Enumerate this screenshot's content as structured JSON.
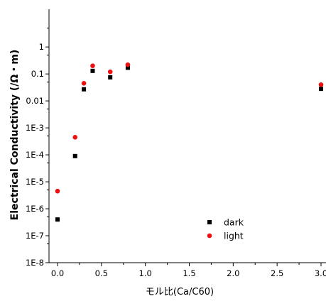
{
  "chart_data": {
    "type": "scatter",
    "title": "",
    "xlabel": "モル比(Ca/C60)",
    "ylabel": "Electrical Conductivity (/Ω・m)",
    "xlim": [
      -0.05,
      3.05
    ],
    "ylim_log10": [
      -8,
      1.4
    ],
    "y_scale": "log",
    "grid": false,
    "legend_position": "lower-right",
    "x_ticks": [
      0.0,
      0.5,
      1.0,
      1.5,
      2.0,
      2.5,
      3.0
    ],
    "x_tick_labels": [
      "0.0",
      "0.5",
      "1.0",
      "1.5",
      "2.0",
      "2.5",
      "3.0"
    ],
    "y_ticks": [
      1e-08,
      1e-07,
      1e-06,
      1e-05,
      0.0001,
      0.001,
      0.01,
      0.1,
      1
    ],
    "y_tick_labels": [
      "1E-8",
      "1E-7",
      "1E-6",
      "1E-5",
      "1E-4",
      "1E-3",
      "0.01",
      "0.1",
      "1"
    ],
    "series": [
      {
        "name": "dark",
        "marker": "square",
        "color": "#000000",
        "x": [
          0.0,
          0.2,
          0.3,
          0.4,
          0.6,
          0.8,
          3.0
        ],
        "y": [
          4e-07,
          9e-05,
          0.027,
          0.13,
          0.075,
          0.17,
          0.028
        ]
      },
      {
        "name": "light",
        "marker": "circle",
        "color": "#ee1111",
        "x": [
          0.0,
          0.2,
          0.3,
          0.4,
          0.6,
          0.8,
          3.0
        ],
        "y": [
          4.5e-06,
          0.00045,
          0.045,
          0.2,
          0.12,
          0.22,
          0.04
        ]
      }
    ]
  }
}
